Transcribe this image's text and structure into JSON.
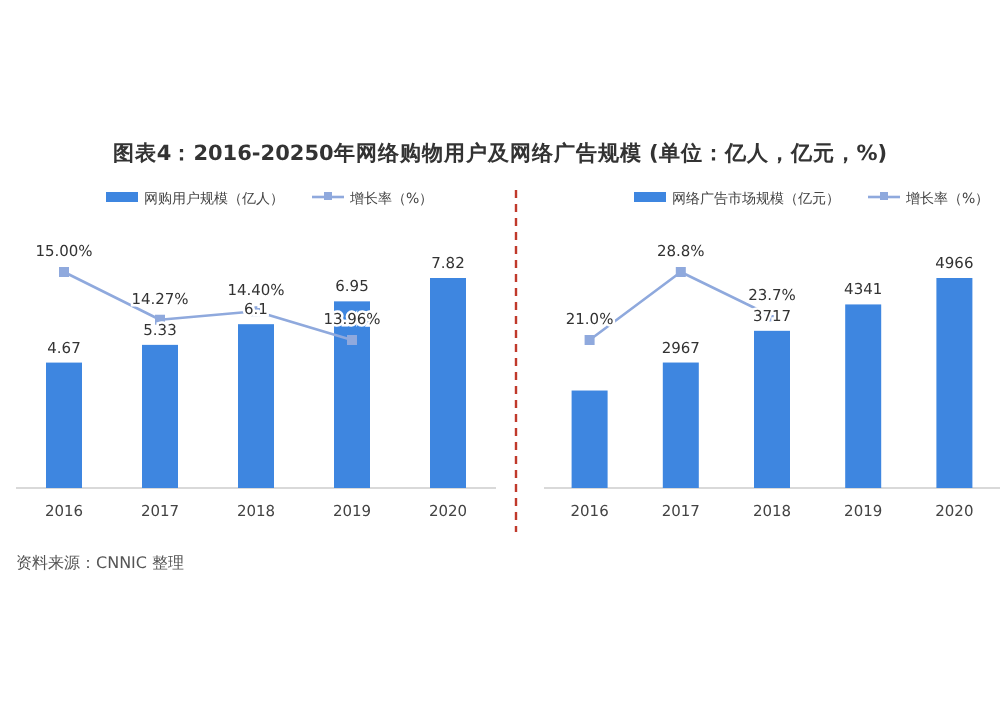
{
  "chart_data": [
    {
      "type": "bar",
      "title": "图表4：2016-20250年网络购物用户及网络广告规模 (单位：亿人，亿元，%)",
      "annotations": [
        "资料来源：CNNIC 整理"
      ],
      "categories": [
        "2016",
        "2017",
        "2018",
        "2019",
        "2020"
      ],
      "legend": "top",
      "series": [
        {
          "name": "网购用户规模（亿人）",
          "color": "#3e86e0",
          "values": [
            4.67,
            5.33,
            6.1,
            6.95,
            7.82
          ],
          "value_labels": [
            "4.67",
            "5.33",
            "6.1",
            "6.95",
            "7.82"
          ]
        },
        {
          "name": "增长率（%）",
          "type": "line",
          "axis": "y2",
          "marker": "square",
          "color": "#8fa9dd",
          "values": [
            15.0,
            14.27,
            14.4,
            13.96,
            null
          ],
          "value_labels": [
            "15.00%",
            "14.27%",
            "14.40%",
            "13.96%",
            null
          ]
        }
      ]
    },
    {
      "type": "bar",
      "categories": [
        "2016",
        "2017",
        "2018",
        "2019",
        "2020"
      ],
      "legend": "top",
      "series": [
        {
          "name": "网络广告市场规模（亿元）",
          "color": "#3e86e0",
          "values": [
            2305,
            2967,
            3717,
            4341,
            4966
          ],
          "value_labels": [
            null,
            "2967",
            "3717",
            "4341",
            "4966"
          ]
        },
        {
          "name": "增长率（%）",
          "type": "line",
          "axis": "y2",
          "marker": "square",
          "color": "#8fa9dd",
          "values": [
            21.0,
            28.8,
            23.7,
            null,
            null
          ],
          "value_labels": [
            "21.0%",
            "28.8%",
            "23.7%",
            null,
            null
          ]
        }
      ]
    }
  ]
}
